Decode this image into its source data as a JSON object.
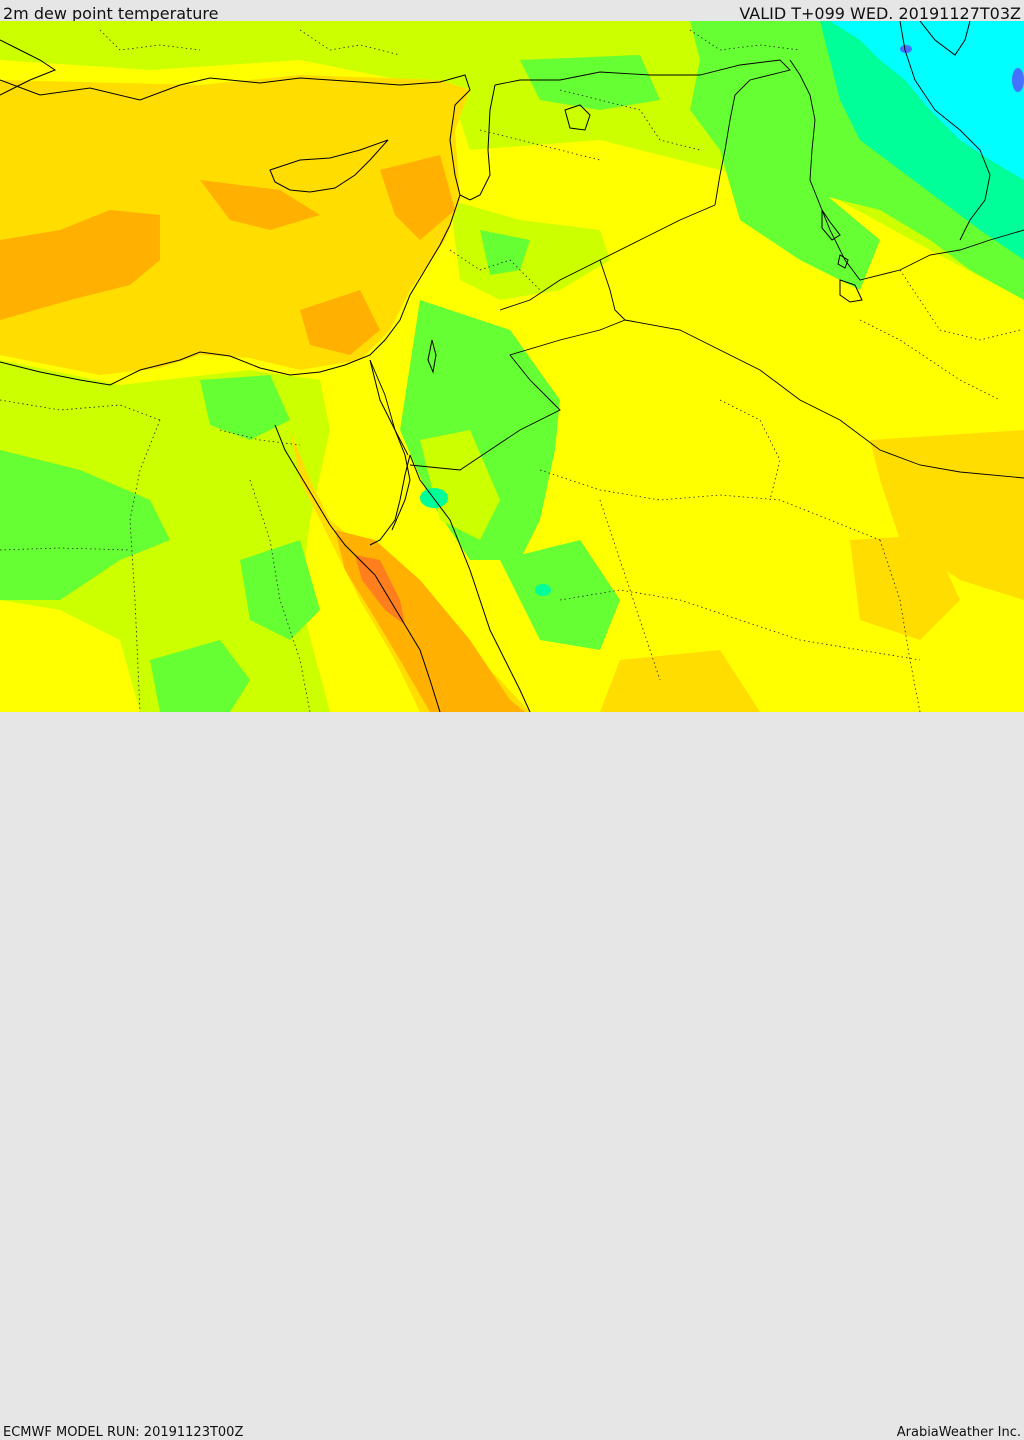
{
  "header": {
    "title": "2m dew point temperature",
    "valid": "VALID T+099 WED. 20191127T03Z"
  },
  "footer": {
    "model_run": "ECMWF MODEL RUN: 20191123T00Z",
    "credit": "ArabiaWeather Inc."
  },
  "colors": {
    "cyan": "#00ffff",
    "aqua_green": "#00ff99",
    "green": "#66ff33",
    "yellow_green": "#ccff00",
    "yellow": "#ffff00",
    "gold": "#ffdd00",
    "orange": "#ffb000",
    "dark_orange": "#ff7f1f",
    "blue_spot": "#4472ff",
    "boundary": "#000000"
  }
}
